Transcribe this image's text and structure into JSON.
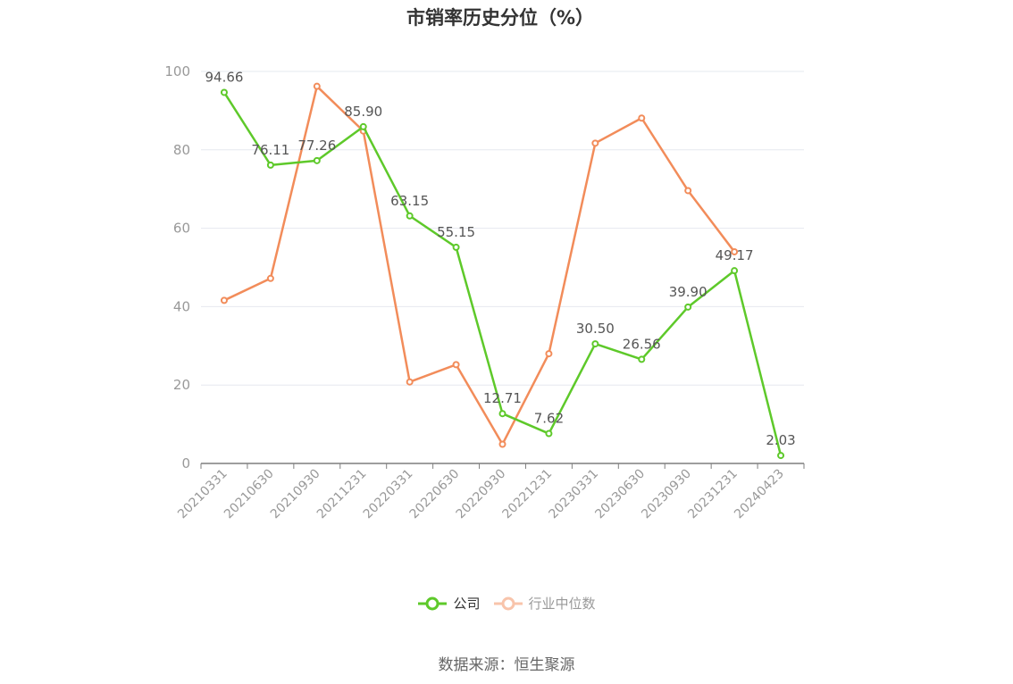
{
  "chart_data": {
    "type": "line",
    "title": "市销率历史分位（%）",
    "x": [
      "20210331",
      "20210630",
      "20210930",
      "20211231",
      "20220331",
      "20220630",
      "20220930",
      "20221231",
      "20230331",
      "20230630",
      "20230930",
      "20231231",
      "20240423"
    ],
    "ylim": [
      0,
      100
    ],
    "yticks": [
      0,
      20,
      40,
      60,
      80,
      100
    ],
    "grid": true,
    "legend_position": "bottom-center",
    "series": [
      {
        "name": "公司",
        "color": "#5ec92a",
        "label_text": [
          "94.66",
          "76.11",
          "77.26",
          "85.90",
          "63.15",
          "55.15",
          "12.71",
          "7.62",
          "30.50",
          "26.56",
          "39.90",
          "49.17",
          "2.03"
        ],
        "values": [
          94.66,
          76.11,
          77.26,
          85.9,
          63.15,
          55.15,
          12.71,
          7.62,
          30.5,
          26.56,
          39.9,
          49.17,
          2.03
        ],
        "labels": true
      },
      {
        "name": "行业中位数",
        "color": "#f28c5a",
        "values": [
          41.6,
          47.2,
          96.2,
          84.8,
          20.8,
          25.2,
          4.9,
          28.0,
          81.7,
          88.1,
          69.6,
          54.0,
          null
        ],
        "labels": false
      }
    ],
    "source": "数据来源：恒生聚源"
  }
}
